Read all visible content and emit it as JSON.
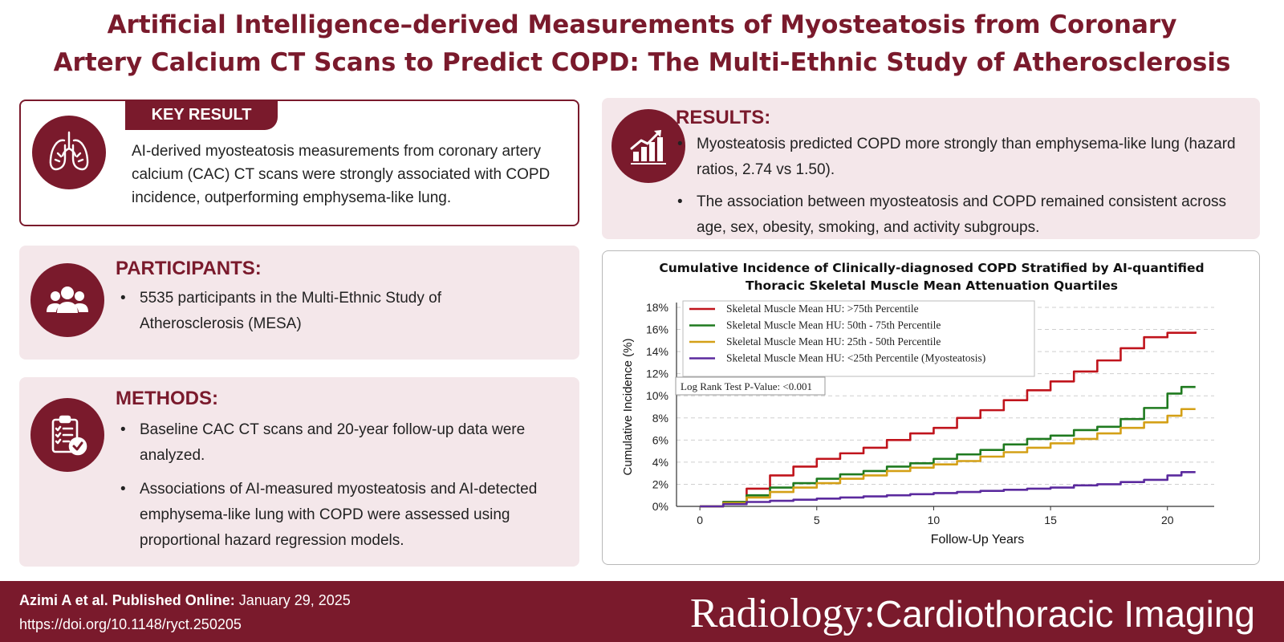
{
  "title": {
    "line1": "Artificial Intelligence–derived Measurements of Myosteatosis from Coronary",
    "line2": "Artery Calcium CT Scans to Predict COPD: The Multi-Ethnic Study of Atherosclerosis"
  },
  "key_result": {
    "label": "KEY RESULT",
    "text": "AI-derived myosteatosis measurements from coronary artery calcium (CAC) CT scans were strongly associated with COPD incidence, outperforming emphysema-like lung."
  },
  "participants": {
    "heading": "PARTICIPANTS:",
    "bullets": [
      "5535 participants in the Multi-Ethnic Study of Atherosclerosis (MESA)"
    ]
  },
  "methods": {
    "heading": "METHODS:",
    "bullets": [
      "Baseline CAC CT scans and 20-year follow-up data were analyzed.",
      "Associations of AI-measured myosteatosis and AI-detected emphysema-like lung with COPD were assessed using proportional hazard regression models."
    ]
  },
  "results": {
    "heading": "RESULTS:",
    "bullets": [
      "Myosteatosis predicted COPD more strongly than emphysema-like lung (hazard ratios, 2.74 vs 1.50).",
      "The association between myosteatosis and COPD remained consistent across age, sex, obesity, smoking, and activity subgroups."
    ]
  },
  "colors": {
    "brand": "#7a1a2c",
    "panel_bg": "#f4e7ea"
  },
  "icons": {
    "key_result": "lungs-icon",
    "participants": "people-group-icon",
    "methods": "clipboard-check-icon",
    "results": "bar-chart-growth-icon"
  },
  "chart_data": {
    "type": "line",
    "title_line1": "Cumulative Incidence of Clinically-diagnosed COPD Stratified by AI-quantified",
    "title_line2": "Thoracic Skeletal Muscle Mean Attenuation Quartiles",
    "xlabel": "Follow-Up Years",
    "ylabel": "Cumulative Incidence (%)",
    "xlim": [
      -1,
      22
    ],
    "ylim": [
      0,
      18
    ],
    "xticks": [
      0,
      5,
      10,
      15,
      20
    ],
    "yticks": [
      0,
      2,
      4,
      6,
      8,
      10,
      12,
      14,
      16,
      18
    ],
    "ytick_labels": [
      "0%",
      "2%",
      "4%",
      "6%",
      "8%",
      "10%",
      "12%",
      "14%",
      "16%",
      "18%"
    ],
    "grid": "horizontal-dashed",
    "legend_position": "top-left",
    "annotation": "Log Rank Test P-Value: <0.001",
    "series": [
      {
        "name": "Skeletal Muscle Mean HU: >75th Percentile",
        "color": "#c0141c",
        "x": [
          0,
          1,
          2,
          3,
          4,
          5,
          6,
          7,
          8,
          9,
          10,
          11,
          12,
          13,
          14,
          15,
          16,
          17,
          18,
          19,
          20,
          21.2
        ],
        "y": [
          0,
          0.4,
          1.6,
          2.8,
          3.6,
          4.3,
          4.8,
          5.3,
          6.0,
          6.6,
          7.1,
          8.0,
          8.7,
          9.6,
          10.5,
          11.3,
          12.2,
          13.2,
          14.3,
          15.3,
          15.7,
          15.8
        ]
      },
      {
        "name": "Skeletal Muscle Mean HU: 50th - 75th Percentile",
        "color": "#1f7a1f",
        "x": [
          0,
          1,
          2,
          3,
          4,
          5,
          6,
          7,
          8,
          9,
          10,
          11,
          12,
          13,
          14,
          15,
          16,
          17,
          18,
          19,
          20,
          20.6,
          21.2
        ],
        "y": [
          0,
          0.4,
          1.0,
          1.7,
          2.1,
          2.5,
          2.9,
          3.2,
          3.6,
          3.9,
          4.3,
          4.7,
          5.1,
          5.6,
          6.1,
          6.4,
          6.9,
          7.2,
          7.9,
          8.9,
          10.2,
          10.8,
          10.8
        ]
      },
      {
        "name": "Skeletal Muscle Mean HU: 25th - 50th Percentile",
        "color": "#d4a017",
        "x": [
          0,
          1,
          2,
          3,
          4,
          5,
          6,
          7,
          8,
          9,
          10,
          11,
          12,
          13,
          14,
          15,
          16,
          17,
          18,
          19,
          20,
          20.6,
          21.2
        ],
        "y": [
          0,
          0.3,
          0.8,
          1.3,
          1.7,
          2.1,
          2.5,
          2.8,
          3.2,
          3.5,
          3.8,
          4.1,
          4.5,
          4.9,
          5.3,
          5.7,
          6.1,
          6.6,
          7.1,
          7.6,
          8.2,
          8.8,
          8.8
        ]
      },
      {
        "name": "Skeletal Muscle Mean HU: <25th Percentile (Myosteatosis)",
        "color": "#5b2a9e",
        "x": [
          0,
          1,
          2,
          3,
          4,
          5,
          6,
          7,
          8,
          9,
          10,
          11,
          12,
          13,
          14,
          15,
          16,
          17,
          18,
          19,
          20,
          20.6,
          21.2
        ],
        "y": [
          0,
          0.2,
          0.4,
          0.5,
          0.6,
          0.7,
          0.8,
          0.9,
          1.0,
          1.1,
          1.2,
          1.3,
          1.4,
          1.5,
          1.6,
          1.7,
          1.9,
          2.0,
          2.2,
          2.4,
          2.8,
          3.1,
          3.1
        ]
      }
    ]
  },
  "footer": {
    "citation_bold": "Azimi A et al. Published Online:",
    "citation_date": " January 29, 2025",
    "doi": "https://doi.org/10.1148/ryct.250205",
    "journal_part1": "Radiology:",
    "journal_part2": "Cardiothoracic Imaging"
  }
}
